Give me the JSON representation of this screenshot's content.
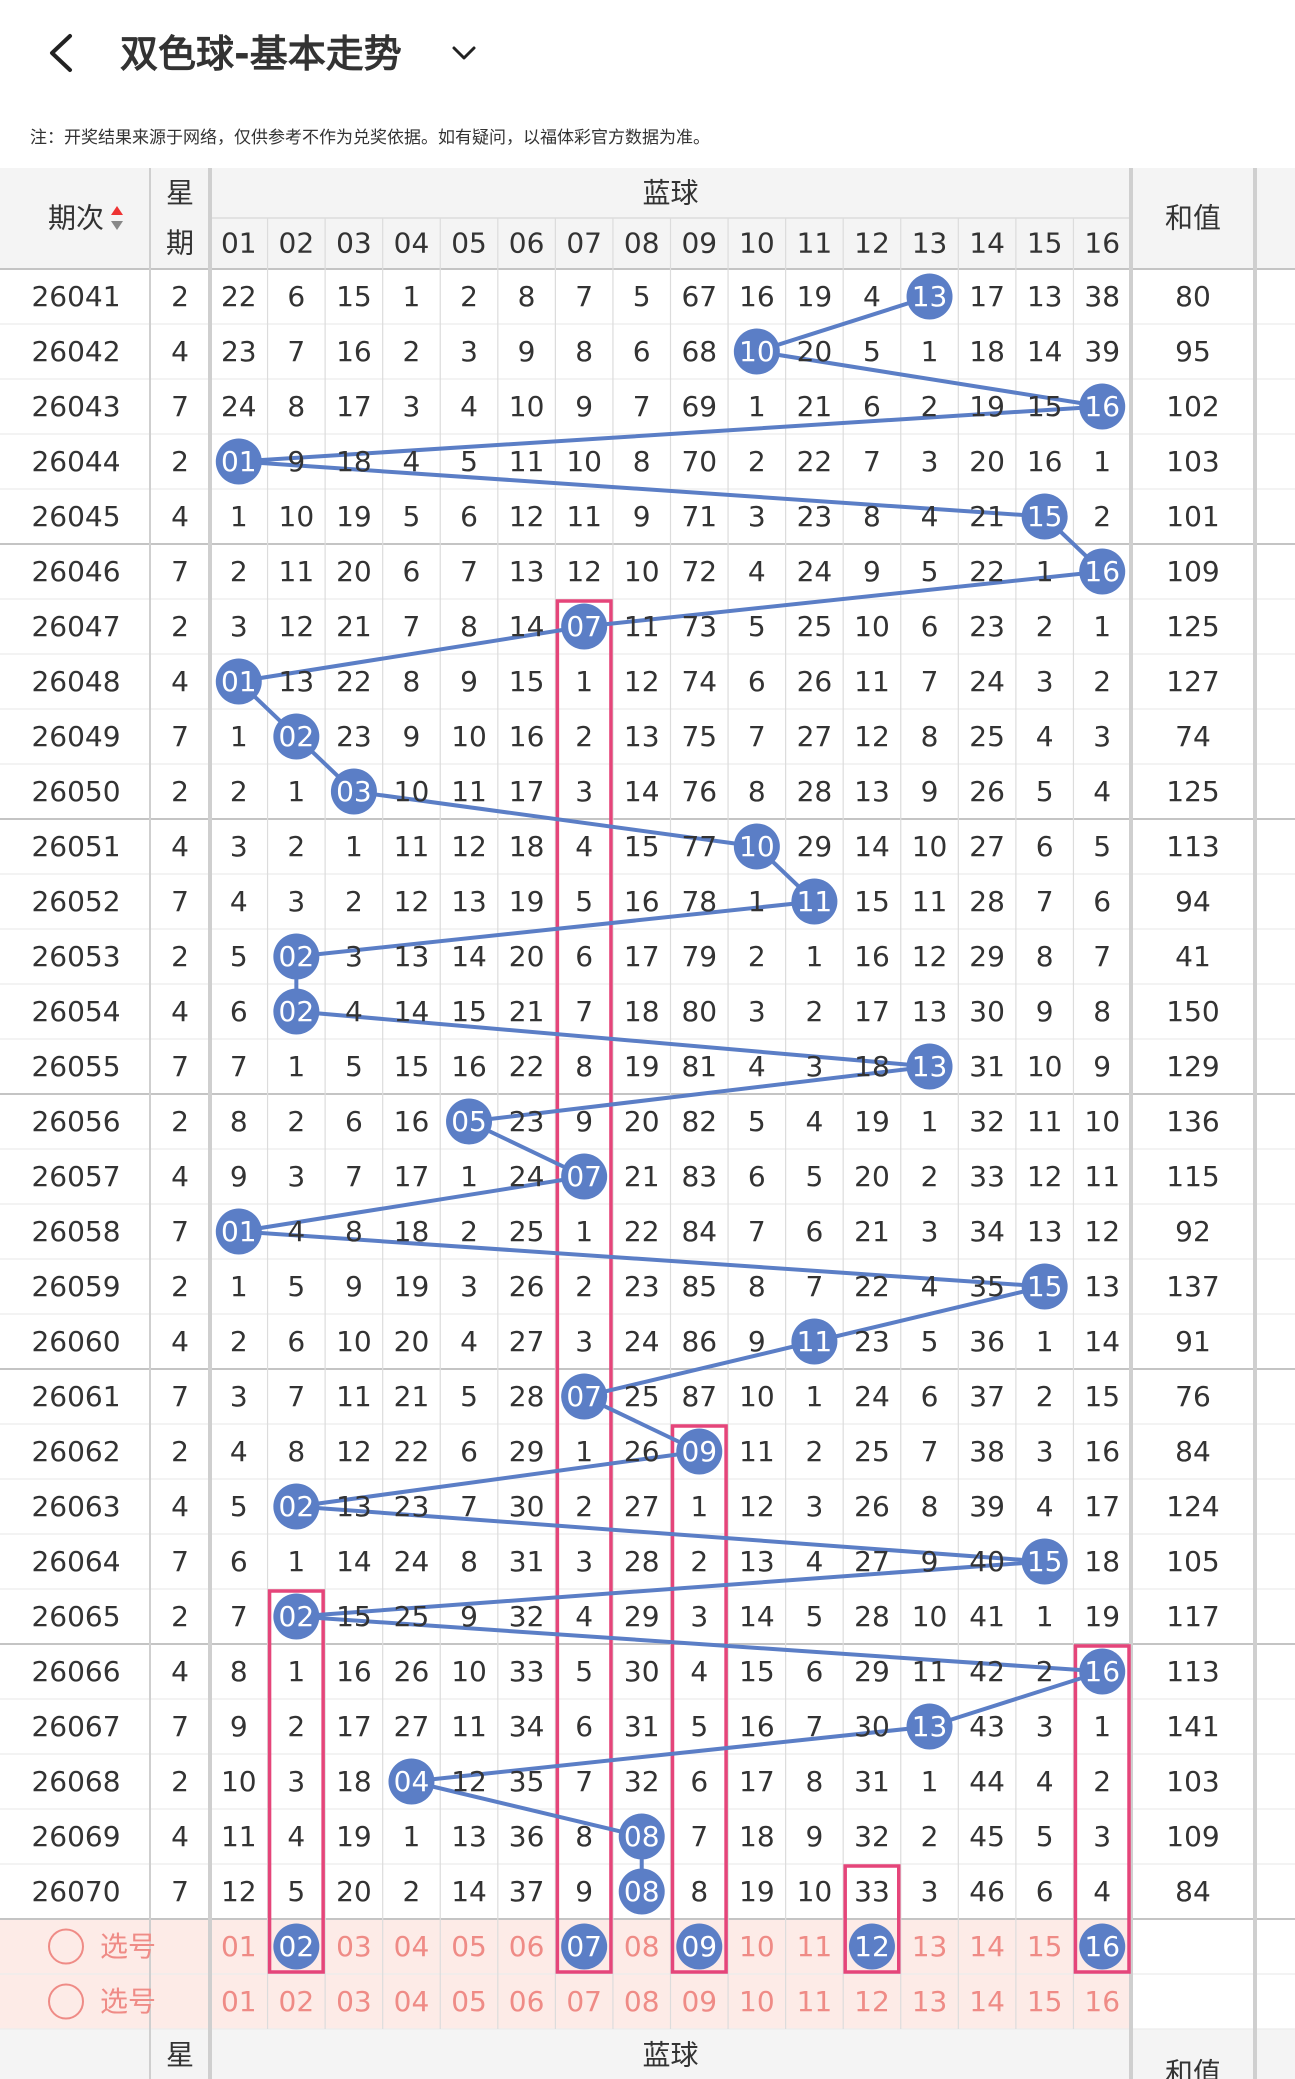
{
  "header": {
    "title": "双色球-基本走势",
    "note": "注：开奖结果来源于网络，仅供参考不作为兑奖依据。如有疑问，以福体彩官方数据为准。"
  },
  "table": {
    "columns": {
      "period": "期次",
      "week": [
        "星",
        "期"
      ],
      "group": "蓝球",
      "numbers": [
        "01",
        "02",
        "03",
        "04",
        "05",
        "06",
        "07",
        "08",
        "09",
        "10",
        "11",
        "12",
        "13",
        "14",
        "15",
        "16"
      ],
      "sum": "和值"
    },
    "rows": [
      {
        "period": "26041",
        "week": 2,
        "cells": [
          22,
          6,
          15,
          1,
          2,
          8,
          7,
          5,
          67,
          16,
          19,
          4,
          null,
          17,
          13,
          38
        ],
        "ball": "13",
        "sum": 80
      },
      {
        "period": "26042",
        "week": 4,
        "cells": [
          23,
          7,
          16,
          2,
          3,
          9,
          8,
          6,
          68,
          null,
          20,
          5,
          1,
          18,
          14,
          39
        ],
        "ball": "10",
        "sum": 95
      },
      {
        "period": "26043",
        "week": 7,
        "cells": [
          24,
          8,
          17,
          3,
          4,
          10,
          9,
          7,
          69,
          1,
          21,
          6,
          2,
          19,
          15,
          null
        ],
        "ball": "16",
        "sum": 102
      },
      {
        "period": "26044",
        "week": 2,
        "cells": [
          null,
          9,
          18,
          4,
          5,
          11,
          10,
          8,
          70,
          2,
          22,
          7,
          3,
          20,
          16,
          1
        ],
        "ball": "01",
        "sum": 103
      },
      {
        "period": "26045",
        "week": 4,
        "cells": [
          1,
          10,
          19,
          5,
          6,
          12,
          11,
          9,
          71,
          3,
          23,
          8,
          4,
          21,
          null,
          2
        ],
        "ball": "15",
        "sum": 101
      },
      {
        "period": "26046",
        "week": 7,
        "cells": [
          2,
          11,
          20,
          6,
          7,
          13,
          12,
          10,
          72,
          4,
          24,
          9,
          5,
          22,
          1,
          null
        ],
        "ball": "16",
        "sum": 109
      },
      {
        "period": "26047",
        "week": 2,
        "cells": [
          3,
          12,
          21,
          7,
          8,
          14,
          null,
          11,
          73,
          5,
          25,
          10,
          6,
          23,
          2,
          1
        ],
        "ball": "07",
        "sum": 125
      },
      {
        "period": "26048",
        "week": 4,
        "cells": [
          null,
          13,
          22,
          8,
          9,
          15,
          1,
          12,
          74,
          6,
          26,
          11,
          7,
          24,
          3,
          2
        ],
        "ball": "01",
        "sum": 127
      },
      {
        "period": "26049",
        "week": 7,
        "cells": [
          1,
          null,
          23,
          9,
          10,
          16,
          2,
          13,
          75,
          7,
          27,
          12,
          8,
          25,
          4,
          3
        ],
        "ball": "02",
        "sum": 74
      },
      {
        "period": "26050",
        "week": 2,
        "cells": [
          2,
          1,
          null,
          10,
          11,
          17,
          3,
          14,
          76,
          8,
          28,
          13,
          9,
          26,
          5,
          4
        ],
        "ball": "03",
        "sum": 125
      },
      {
        "period": "26051",
        "week": 4,
        "cells": [
          3,
          2,
          1,
          11,
          12,
          18,
          4,
          15,
          77,
          null,
          29,
          14,
          10,
          27,
          6,
          5
        ],
        "ball": "10",
        "sum": 113
      },
      {
        "period": "26052",
        "week": 7,
        "cells": [
          4,
          3,
          2,
          12,
          13,
          19,
          5,
          16,
          78,
          1,
          null,
          15,
          11,
          28,
          7,
          6
        ],
        "ball": "11",
        "sum": 94
      },
      {
        "period": "26053",
        "week": 2,
        "cells": [
          5,
          null,
          3,
          13,
          14,
          20,
          6,
          17,
          79,
          2,
          1,
          16,
          12,
          29,
          8,
          7
        ],
        "ball": "02",
        "sum": 41
      },
      {
        "period": "26054",
        "week": 4,
        "cells": [
          6,
          null,
          4,
          14,
          15,
          21,
          7,
          18,
          80,
          3,
          2,
          17,
          13,
          30,
          9,
          8
        ],
        "ball": "02",
        "sum": 150
      },
      {
        "period": "26055",
        "week": 7,
        "cells": [
          7,
          1,
          5,
          15,
          16,
          22,
          8,
          19,
          81,
          4,
          3,
          18,
          null,
          31,
          10,
          9
        ],
        "ball": "13",
        "sum": 129
      },
      {
        "period": "26056",
        "week": 2,
        "cells": [
          8,
          2,
          6,
          16,
          null,
          23,
          9,
          20,
          82,
          5,
          4,
          19,
          1,
          32,
          11,
          10
        ],
        "ball": "05",
        "sum": 136
      },
      {
        "period": "26057",
        "week": 4,
        "cells": [
          9,
          3,
          7,
          17,
          1,
          24,
          null,
          21,
          83,
          6,
          5,
          20,
          2,
          33,
          12,
          11
        ],
        "ball": "07",
        "sum": 115
      },
      {
        "period": "26058",
        "week": 7,
        "cells": [
          null,
          4,
          8,
          18,
          2,
          25,
          1,
          22,
          84,
          7,
          6,
          21,
          3,
          34,
          13,
          12
        ],
        "ball": "01",
        "sum": 92
      },
      {
        "period": "26059",
        "week": 2,
        "cells": [
          1,
          5,
          9,
          19,
          3,
          26,
          2,
          23,
          85,
          8,
          7,
          22,
          4,
          35,
          null,
          13
        ],
        "ball": "15",
        "sum": 137
      },
      {
        "period": "26060",
        "week": 4,
        "cells": [
          2,
          6,
          10,
          20,
          4,
          27,
          3,
          24,
          86,
          9,
          null,
          23,
          5,
          36,
          1,
          14
        ],
        "ball": "11",
        "sum": 91
      },
      {
        "period": "26061",
        "week": 7,
        "cells": [
          3,
          7,
          11,
          21,
          5,
          28,
          null,
          25,
          87,
          10,
          1,
          24,
          6,
          37,
          2,
          15
        ],
        "ball": "07",
        "sum": 76
      },
      {
        "period": "26062",
        "week": 2,
        "cells": [
          4,
          8,
          12,
          22,
          6,
          29,
          1,
          26,
          null,
          11,
          2,
          25,
          7,
          38,
          3,
          16
        ],
        "ball": "09",
        "sum": 84
      },
      {
        "period": "26063",
        "week": 4,
        "cells": [
          5,
          null,
          13,
          23,
          7,
          30,
          2,
          27,
          1,
          12,
          3,
          26,
          8,
          39,
          4,
          17
        ],
        "ball": "02",
        "sum": 124
      },
      {
        "period": "26064",
        "week": 7,
        "cells": [
          6,
          1,
          14,
          24,
          8,
          31,
          3,
          28,
          2,
          13,
          4,
          27,
          9,
          40,
          null,
          18
        ],
        "ball": "15",
        "sum": 105
      },
      {
        "period": "26065",
        "week": 2,
        "cells": [
          7,
          null,
          15,
          25,
          9,
          32,
          4,
          29,
          3,
          14,
          5,
          28,
          10,
          41,
          1,
          19
        ],
        "ball": "02",
        "sum": 117
      },
      {
        "period": "26066",
        "week": 4,
        "cells": [
          8,
          1,
          16,
          26,
          10,
          33,
          5,
          30,
          4,
          15,
          6,
          29,
          11,
          42,
          2,
          null
        ],
        "ball": "16",
        "sum": 113
      },
      {
        "period": "26067",
        "week": 7,
        "cells": [
          9,
          2,
          17,
          27,
          11,
          34,
          6,
          31,
          5,
          16,
          7,
          30,
          null,
          43,
          3,
          1
        ],
        "ball": "13",
        "sum": 141
      },
      {
        "period": "26068",
        "week": 2,
        "cells": [
          10,
          3,
          18,
          null,
          12,
          35,
          7,
          32,
          6,
          17,
          8,
          31,
          1,
          44,
          4,
          2
        ],
        "ball": "04",
        "sum": 103
      },
      {
        "period": "26069",
        "week": 4,
        "cells": [
          11,
          4,
          19,
          1,
          13,
          36,
          8,
          null,
          7,
          18,
          9,
          32,
          2,
          45,
          5,
          3
        ],
        "ball": "08",
        "sum": 109
      },
      {
        "period": "26070",
        "week": 7,
        "cells": [
          12,
          5,
          20,
          2,
          14,
          37,
          9,
          null,
          8,
          19,
          10,
          33,
          3,
          46,
          6,
          4
        ],
        "ball": "08",
        "sum": 84
      }
    ],
    "picks": [
      {
        "label": "选号",
        "cells": [
          "01",
          null,
          "03",
          "04",
          "05",
          "06",
          null,
          "08",
          null,
          "10",
          "11",
          null,
          "13",
          "14",
          "15",
          null
        ],
        "balls": [
          "02",
          "07",
          "09",
          "12",
          "16"
        ]
      },
      {
        "label": "选号",
        "cells": [
          "01",
          "02",
          "03",
          "04",
          "05",
          "06",
          "07",
          "08",
          "09",
          "10",
          "11",
          "12",
          "13",
          "14",
          "15",
          "16"
        ],
        "balls": []
      }
    ],
    "footer": {
      "week": "星",
      "group": "蓝球",
      "sum": "和值"
    }
  }
}
